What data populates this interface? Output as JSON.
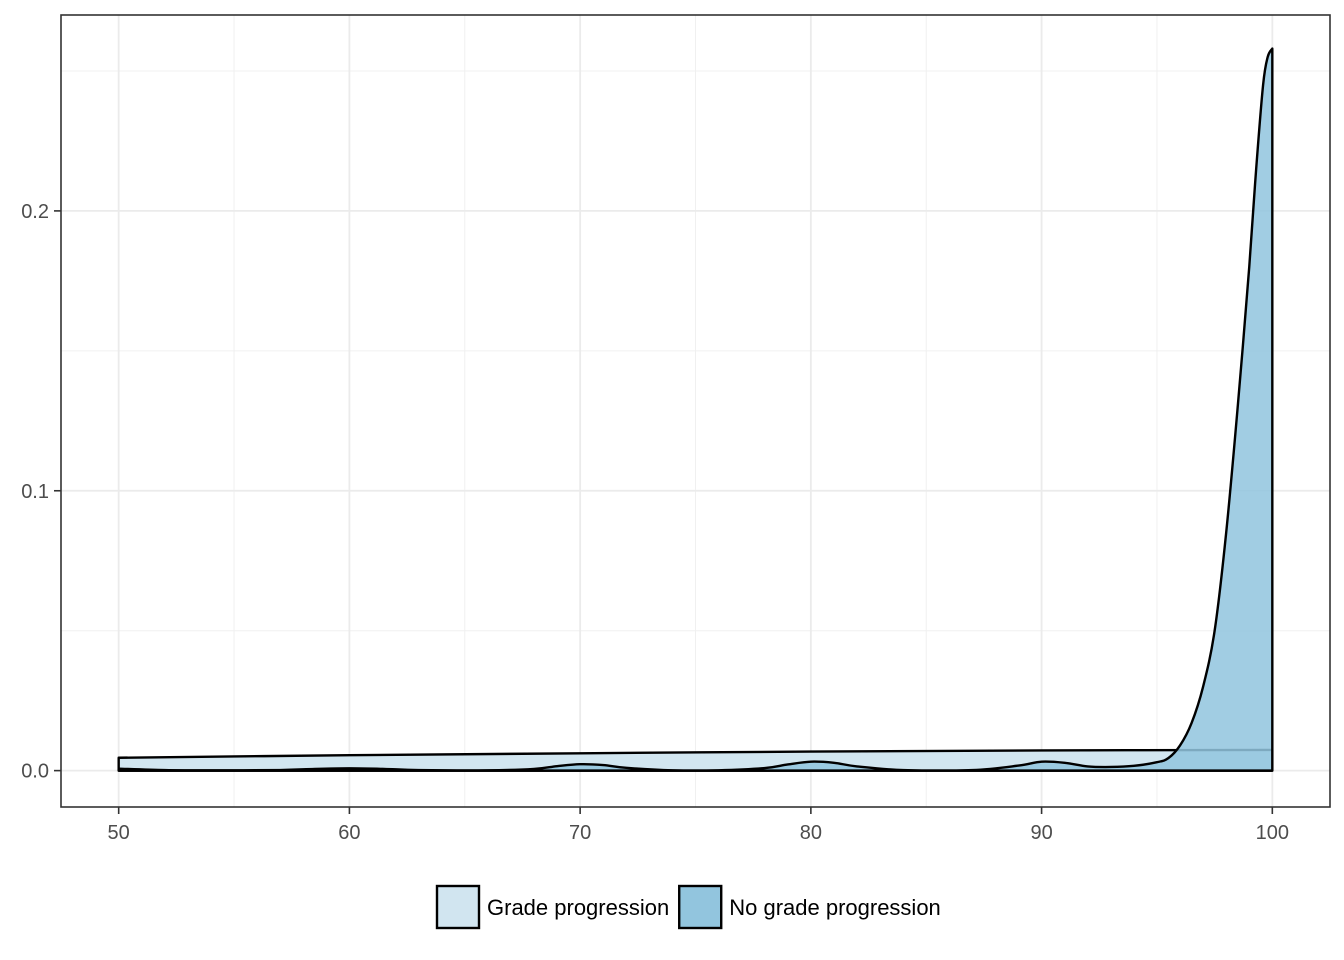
{
  "chart_data": {
    "type": "area",
    "subtype": "density",
    "title": "",
    "xlabel": "",
    "ylabel": "",
    "xlim": [
      47.5,
      102.5
    ],
    "ylim": [
      -0.013,
      0.27
    ],
    "x_ticks": [
      50,
      60,
      70,
      80,
      90,
      100
    ],
    "x_tick_labels": [
      "50",
      "60",
      "70",
      "80",
      "90",
      "100"
    ],
    "y_ticks": [
      0.0,
      0.1,
      0.2
    ],
    "y_tick_labels": [
      "0.0",
      "0.1",
      "0.2"
    ],
    "grid": true,
    "legend_position": "bottom",
    "series": [
      {
        "name": "Grade progression",
        "color": "#d1e5f0",
        "x": [
          50,
          60,
          70,
          80,
          90,
          100
        ],
        "y": [
          0.0046,
          0.0055,
          0.0062,
          0.0068,
          0.0072,
          0.0074
        ]
      },
      {
        "name": "No grade progression",
        "color": "#92c5de",
        "x": [
          50,
          52,
          54,
          57,
          58.5,
          60,
          61.5,
          63,
          66,
          68,
          69,
          70,
          71,
          72,
          74,
          76,
          78,
          79,
          80,
          81,
          82,
          84,
          87,
          89,
          90,
          91,
          92,
          93,
          94,
          95,
          95.5,
          96,
          96.5,
          97,
          97.5,
          98,
          98.5,
          99,
          99.3,
          99.6,
          99.8,
          100
        ],
        "y": [
          0.0007,
          0.0002,
          0.0001,
          0.0002,
          0.0006,
          0.0008,
          0.0006,
          0.0002,
          0.0001,
          0.0006,
          0.0016,
          0.0023,
          0.002,
          0.001,
          0.0001,
          0.0001,
          0.0009,
          0.0022,
          0.0032,
          0.0028,
          0.0015,
          0.0002,
          0.0002,
          0.0018,
          0.0032,
          0.0028,
          0.0015,
          0.0013,
          0.0017,
          0.003,
          0.0045,
          0.009,
          0.017,
          0.03,
          0.05,
          0.085,
          0.13,
          0.18,
          0.215,
          0.245,
          0.255,
          0.258
        ]
      }
    ]
  }
}
